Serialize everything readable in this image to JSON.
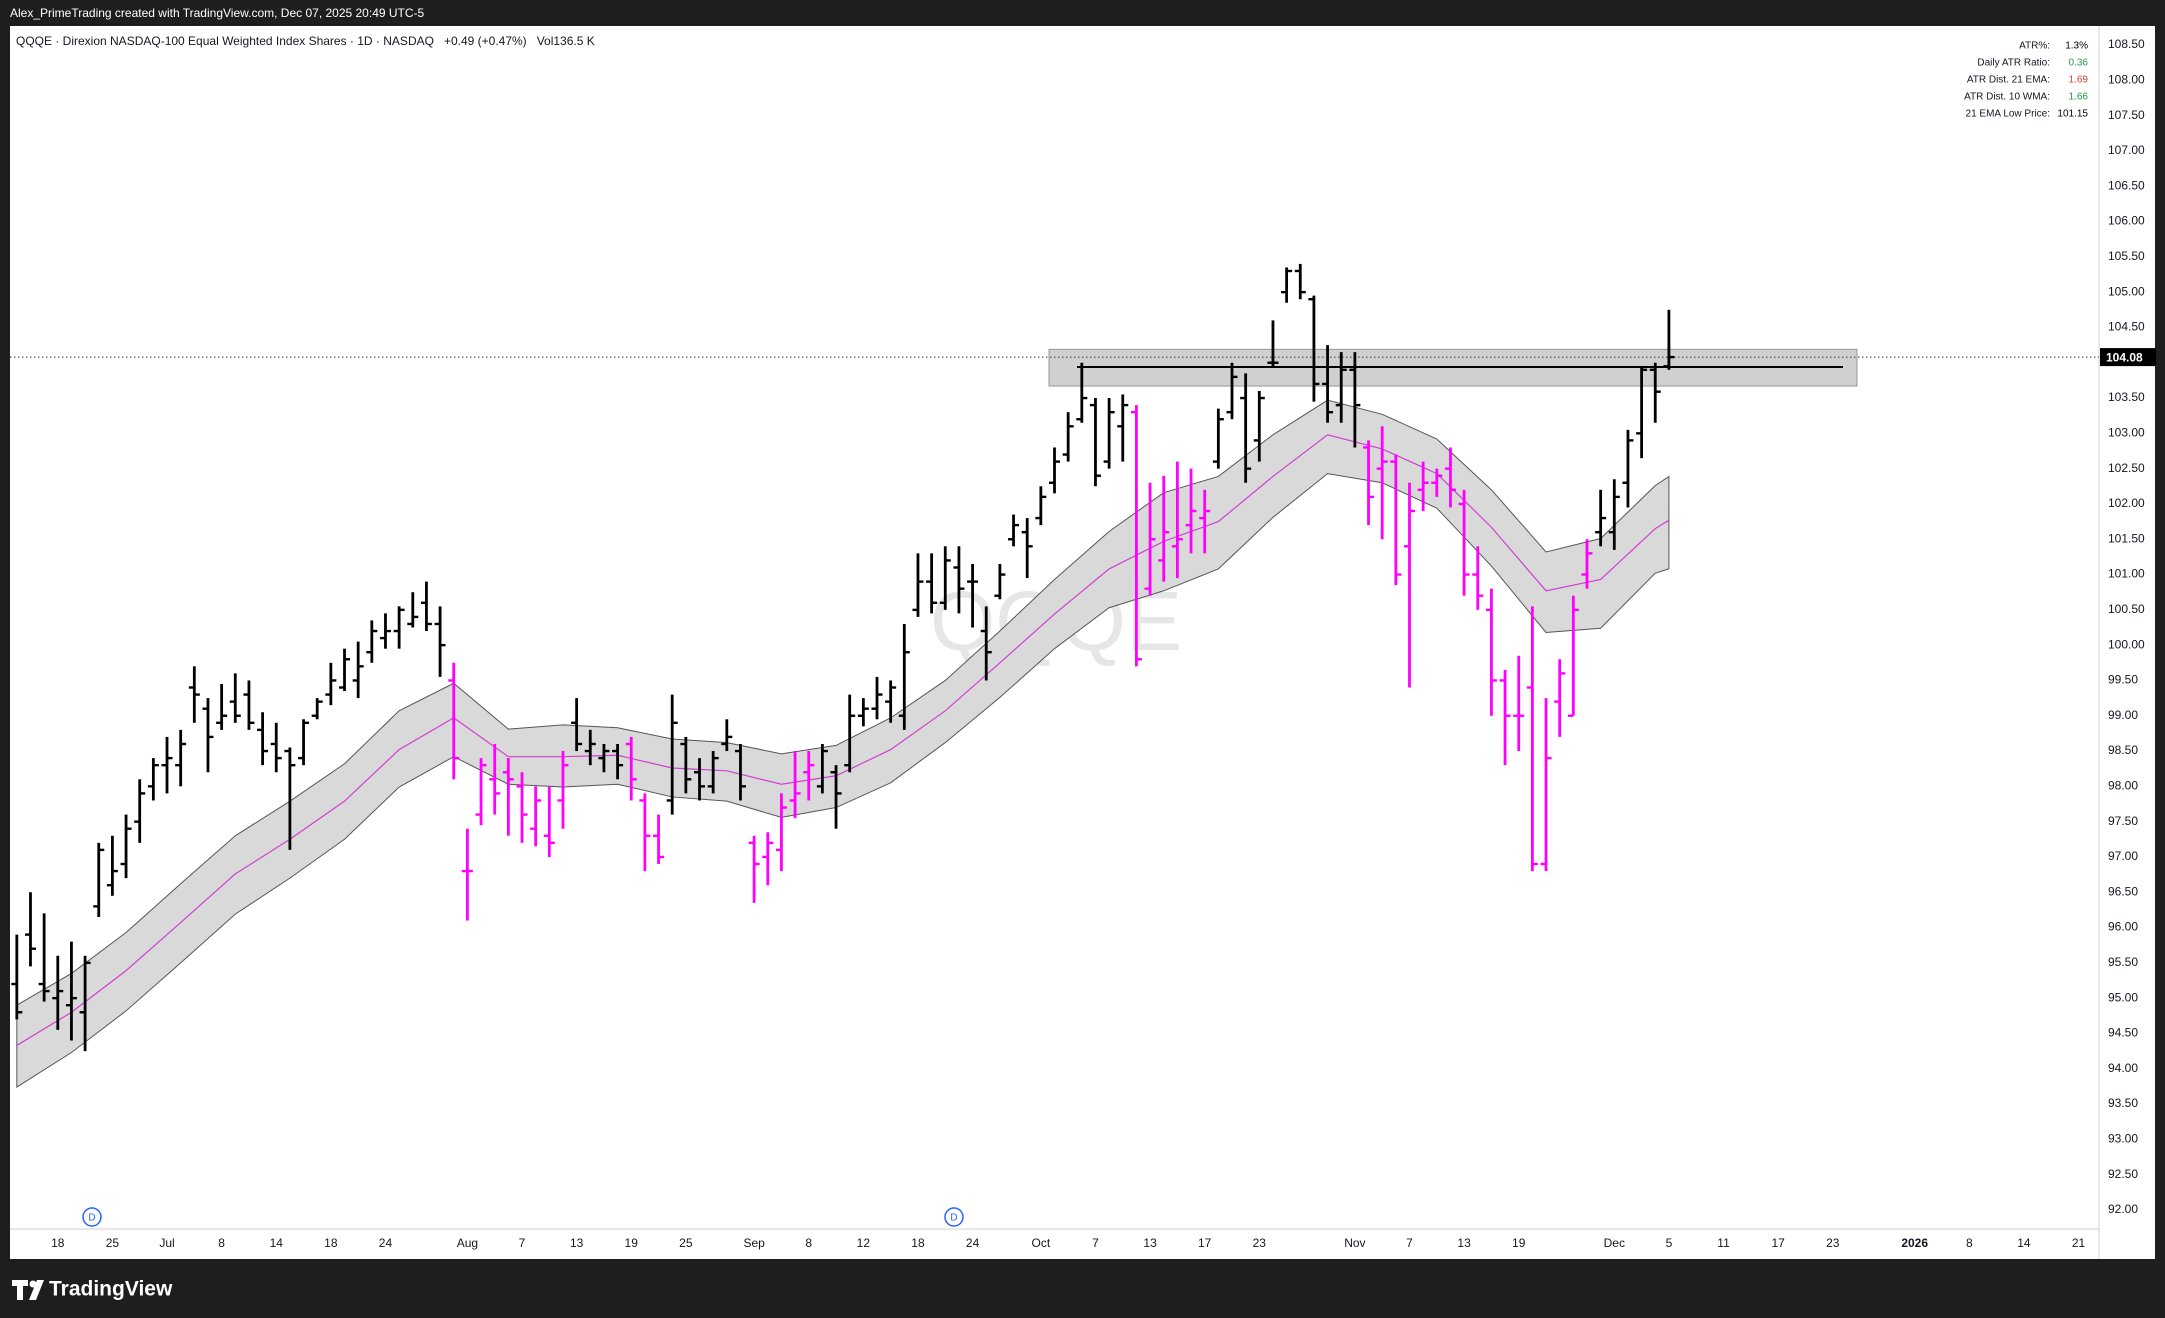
{
  "header": {
    "credit": "Alex_PrimeTrading created with TradingView.com, Dec 07, 2025 20:49 UTC-5"
  },
  "footer": {
    "brand": "TradingView"
  },
  "chart_data": {
    "type": "ohlc",
    "symbol_line": "QQQE · Direxion NASDAQ-100 Equal Weighted Index Shares · 1D · NASDAQ",
    "change": "+0.49 (+0.47%)",
    "volume_label": "Vol",
    "volume": "136.5 K",
    "watermark": "QQQE",
    "categories": [
      null,
      null,
      null,
      "18",
      null,
      null,
      null,
      "25",
      null,
      null,
      null,
      "Jul",
      null,
      null,
      null,
      "8",
      null,
      null,
      null,
      "14",
      null,
      null,
      null,
      "18",
      null,
      null,
      null,
      "24",
      null,
      null,
      null,
      null,
      null,
      "Aug",
      null,
      null,
      null,
      "7",
      null,
      null,
      null,
      "13",
      null,
      null,
      null,
      "19",
      null,
      null,
      null,
      "25",
      null,
      null,
      null,
      null,
      "Sep",
      null,
      null,
      null,
      "8",
      null,
      null,
      null,
      "12",
      null,
      null,
      null,
      "18",
      null,
      null,
      null,
      "24",
      null,
      null,
      null,
      null,
      "Oct",
      null,
      null,
      null,
      "7",
      null,
      null,
      null,
      "13",
      null,
      null,
      null,
      "17",
      null,
      null,
      null,
      "23",
      null,
      null,
      null,
      null,
      null,
      null,
      "Nov",
      null,
      null,
      null,
      "7",
      null,
      null,
      null,
      "13",
      null,
      null,
      null,
      "19",
      null,
      null,
      null,
      null,
      null,
      null,
      "Dec",
      null,
      null,
      null,
      "5",
      null,
      null,
      null,
      "11",
      null,
      null,
      null,
      "17",
      null,
      null,
      null,
      "23",
      null,
      null,
      null,
      null,
      null,
      "2026",
      null,
      null,
      null,
      "8",
      null,
      null,
      null,
      "14",
      null,
      null,
      null,
      "21",
      null
    ],
    "open": [
      95.2,
      95.9,
      95.2,
      95.0,
      94.9,
      94.8,
      96.3,
      96.6,
      96.9,
      97.5,
      98.0,
      98.3,
      98.3,
      99.4,
      99.1,
      98.9,
      99.2,
      99.3,
      98.8,
      98.6,
      98.5,
      98.4,
      99.0,
      99.3,
      99.4,
      99.5,
      99.9,
      100.1,
      100.2,
      100.3,
      100.6,
      100.3,
      99.5,
      96.8,
      97.6,
      98.1,
      98.2,
      98.0,
      97.4,
      97.3,
      97.8,
      98.9,
      98.5,
      98.4,
      98.5,
      98.6,
      97.8,
      97.3,
      97.8,
      98.6,
      98.2,
      98.0,
      98.6,
      98.5,
      97.2,
      97.0,
      97.1,
      97.8,
      98.2,
      98.0,
      98.2,
      98.3,
      99.0,
      99.1,
      99.2,
      99.0,
      100.5,
      100.9,
      100.6,
      101.1,
      100.9,
      100.2,
      100.7,
      101.5,
      101.6,
      101.8,
      102.3,
      102.7,
      103.2,
      103.4,
      102.6,
      103.1,
      103.3,
      100.8,
      101.2,
      101.4,
      101.7,
      101.8,
      102.6,
      103.3,
      103.5,
      102.9,
      104.0,
      105.0,
      105.3,
      104.9,
      103.7,
      103.4,
      103.9,
      102.8,
      102.5,
      102.6,
      101.4,
      102.2,
      102.3,
      102.5,
      102.0,
      101.0,
      100.5,
      99.5,
      99.0,
      99.4,
      96.9,
      99.2,
      99.0,
      101.0,
      101.6,
      101.6,
      102.3,
      103.0,
      103.9,
      103.95,
      null,
      null,
      null,
      null,
      null,
      null,
      null,
      null,
      null,
      null,
      null,
      null,
      null,
      null,
      null,
      null,
      null,
      null,
      null,
      null,
      null,
      null,
      null,
      null,
      null,
      null,
      null,
      null,
      null,
      null,
      null
    ],
    "high": [
      95.9,
      96.5,
      96.2,
      95.6,
      95.8,
      95.6,
      97.2,
      97.3,
      97.6,
      98.1,
      98.4,
      98.7,
      98.8,
      99.7,
      99.25,
      99.45,
      99.6,
      99.5,
      99.05,
      98.9,
      98.55,
      98.95,
      99.25,
      99.75,
      99.95,
      100.05,
      100.35,
      100.45,
      100.55,
      100.75,
      100.9,
      100.55,
      99.75,
      97.4,
      98.4,
      98.6,
      98.4,
      98.2,
      98.0,
      98.0,
      98.5,
      99.25,
      98.8,
      98.6,
      98.6,
      98.7,
      97.9,
      97.6,
      99.3,
      98.7,
      98.4,
      98.5,
      98.95,
      98.6,
      97.3,
      97.35,
      97.9,
      98.5,
      98.5,
      98.6,
      98.3,
      99.3,
      99.25,
      99.55,
      99.5,
      100.3,
      101.3,
      101.3,
      101.4,
      101.4,
      101.15,
      100.55,
      101.15,
      101.85,
      101.8,
      102.25,
      102.8,
      103.3,
      104.0,
      103.5,
      103.5,
      103.55,
      103.4,
      102.3,
      102.4,
      102.6,
      102.5,
      102.2,
      103.35,
      104.0,
      103.85,
      103.6,
      104.6,
      105.35,
      105.4,
      104.95,
      104.25,
      104.15,
      104.15,
      102.9,
      103.1,
      102.7,
      102.3,
      102.6,
      102.5,
      102.8,
      102.2,
      101.4,
      100.8,
      99.65,
      99.85,
      100.55,
      99.25,
      99.8,
      100.7,
      101.5,
      102.2,
      102.35,
      103.05,
      103.95,
      104.0,
      104.75,
      null,
      null,
      null,
      null,
      null,
      null,
      null,
      null,
      null,
      null,
      null,
      null,
      null,
      null,
      null,
      null,
      null,
      null,
      null,
      null,
      null,
      null,
      null,
      null,
      null,
      null,
      null,
      null,
      null,
      null,
      null
    ],
    "low": [
      94.7,
      95.45,
      94.95,
      94.55,
      94.4,
      94.25,
      96.15,
      96.45,
      96.7,
      97.2,
      97.8,
      97.9,
      98.0,
      98.9,
      98.2,
      98.8,
      98.9,
      98.8,
      98.3,
      98.2,
      97.1,
      98.3,
      98.95,
      99.15,
      99.35,
      99.25,
      99.75,
      99.95,
      99.95,
      100.25,
      100.2,
      99.55,
      98.1,
      96.1,
      97.45,
      97.6,
      97.3,
      97.2,
      97.15,
      97.0,
      97.4,
      98.5,
      98.3,
      98.2,
      98.1,
      97.8,
      96.8,
      96.9,
      97.6,
      97.9,
      97.8,
      97.9,
      98.5,
      97.8,
      96.35,
      96.6,
      96.8,
      97.55,
      97.8,
      97.9,
      97.4,
      98.2,
      98.85,
      98.95,
      98.9,
      98.8,
      100.4,
      100.45,
      100.5,
      100.45,
      100.25,
      99.5,
      100.65,
      101.4,
      100.95,
      101.7,
      102.15,
      102.6,
      103.15,
      102.25,
      102.5,
      102.6,
      99.7,
      100.7,
      100.9,
      100.95,
      101.3,
      101.3,
      102.5,
      103.2,
      102.3,
      102.6,
      103.95,
      104.85,
      104.9,
      103.45,
      103.15,
      103.15,
      102.8,
      101.7,
      101.5,
      100.85,
      99.4,
      101.9,
      102.1,
      101.95,
      100.7,
      100.5,
      99.0,
      98.3,
      98.5,
      96.8,
      96.8,
      98.7,
      99.0,
      100.8,
      101.4,
      101.35,
      101.95,
      102.65,
      103.15,
      103.9,
      null,
      null,
      null,
      null,
      null,
      null,
      null,
      null,
      null,
      null,
      null,
      null,
      null,
      null,
      null,
      null,
      null,
      null,
      null,
      null,
      null,
      null,
      null,
      null,
      null,
      null,
      null,
      null,
      null,
      null,
      null
    ],
    "close": [
      94.8,
      95.7,
      95.1,
      95.1,
      95.0,
      95.5,
      97.1,
      96.8,
      97.4,
      97.9,
      98.3,
      98.4,
      98.6,
      99.3,
      98.7,
      99.0,
      99.0,
      98.9,
      98.5,
      98.4,
      98.3,
      98.9,
      99.2,
      99.5,
      99.8,
      99.7,
      100.2,
      100.2,
      100.5,
      100.4,
      100.3,
      100.0,
      98.4,
      96.8,
      98.3,
      97.9,
      98.1,
      97.6,
      97.8,
      97.2,
      98.3,
      98.6,
      98.6,
      98.5,
      98.3,
      98.1,
      97.3,
      97.0,
      98.9,
      98.1,
      98.0,
      98.4,
      98.7,
      98.0,
      96.9,
      97.2,
      97.7,
      97.9,
      98.3,
      98.5,
      97.9,
      99.0,
      99.1,
      99.3,
      99.4,
      99.9,
      100.9,
      100.6,
      101.2,
      100.8,
      100.9,
      99.9,
      101.0,
      101.7,
      101.4,
      102.1,
      102.6,
      103.1,
      103.5,
      102.4,
      103.3,
      103.4,
      99.8,
      101.5,
      101.6,
      101.5,
      101.9,
      101.9,
      103.2,
      103.8,
      102.5,
      103.5,
      104.0,
      105.3,
      105.0,
      103.7,
      103.3,
      103.9,
      103.4,
      102.1,
      102.6,
      101.0,
      101.9,
      102.3,
      102.4,
      102.2,
      101.0,
      100.7,
      99.5,
      99.0,
      99.0,
      96.9,
      98.4,
      99.6,
      100.5,
      101.3,
      101.8,
      102.1,
      102.9,
      103.9,
      103.59,
      104.08,
      null,
      null,
      null,
      null,
      null,
      null,
      null,
      null,
      null,
      null,
      null,
      null,
      null,
      null,
      null,
      null,
      null,
      null,
      null,
      null,
      null,
      null,
      null,
      null,
      null,
      null,
      null,
      null,
      null,
      null,
      null
    ],
    "colors": [
      "#000",
      "#000",
      "#000",
      "#000",
      "#000",
      "#000",
      "#000",
      "#000",
      "#000",
      "#000",
      "#000",
      "#000",
      "#000",
      "#000",
      "#000",
      "#000",
      "#000",
      "#000",
      "#000",
      "#000",
      "#000",
      "#000",
      "#000",
      "#000",
      "#000",
      "#000",
      "#000",
      "#000",
      "#000",
      "#000",
      "#000",
      "#000",
      "#f0f",
      "#f0f",
      "#f0f",
      "#f0f",
      "#f0f",
      "#f0f",
      "#f0f",
      "#f0f",
      "#f0f",
      "#000",
      "#000",
      "#000",
      "#000",
      "#f0f",
      "#f0f",
      "#f0f",
      "#000",
      "#000",
      "#000",
      "#000",
      "#000",
      "#000",
      "#f0f",
      "#f0f",
      "#f0f",
      "#f0f",
      "#f0f",
      "#000",
      "#000",
      "#000",
      "#000",
      "#000",
      "#000",
      "#000",
      "#000",
      "#000",
      "#000",
      "#000",
      "#000",
      "#000",
      "#000",
      "#000",
      "#000",
      "#000",
      "#000",
      "#000",
      "#000",
      "#000",
      "#000",
      "#000",
      "#f0f",
      "#f0f",
      "#f0f",
      "#f0f",
      "#f0f",
      "#f0f",
      "#000",
      "#000",
      "#000",
      "#000",
      "#000",
      "#000",
      "#000",
      "#000",
      "#000",
      "#000",
      "#000",
      "#f0f",
      "#f0f",
      "#f0f",
      "#f0f",
      "#f0f",
      "#f0f",
      "#f0f",
      "#f0f",
      "#f0f",
      "#f0f",
      "#f0f",
      "#f0f",
      "#f0f",
      "#f0f",
      "#f0f",
      "#f0f",
      "#f0f",
      "#000",
      "#000",
      "#000",
      "#000",
      "#000",
      "#000"
    ],
    "band": {
      "x": [
        0,
        4,
        8,
        12,
        16,
        20,
        24,
        28,
        32,
        36,
        40,
        44,
        48,
        52,
        56,
        60,
        64,
        68,
        72,
        76,
        80,
        84,
        88,
        92,
        96,
        100,
        104,
        108,
        112,
        116,
        120,
        121
      ],
      "upper": [
        94.9,
        95.35,
        95.93,
        96.62,
        97.3,
        97.79,
        98.32,
        99.07,
        99.46,
        98.81,
        98.87,
        98.83,
        98.67,
        98.62,
        98.46,
        98.58,
        98.97,
        99.5,
        100.2,
        100.93,
        101.61,
        102.16,
        102.39,
        102.98,
        103.47,
        103.27,
        102.92,
        102.2,
        101.32,
        101.51,
        102.26,
        102.39
      ],
      "middle": [
        94.33,
        94.8,
        95.39,
        96.07,
        96.76,
        97.25,
        97.79,
        98.52,
        98.97,
        98.42,
        98.42,
        98.44,
        98.26,
        98.22,
        98.03,
        98.15,
        98.52,
        99.07,
        99.75,
        100.44,
        101.08,
        101.47,
        101.75,
        102.39,
        102.98,
        102.78,
        102.43,
        101.67,
        100.77,
        100.93,
        101.65,
        101.77
      ],
      "lower": [
        93.74,
        94.23,
        94.82,
        95.5,
        96.19,
        96.7,
        97.25,
        97.99,
        98.42,
        98.03,
        97.99,
        98.03,
        97.85,
        97.79,
        97.56,
        97.7,
        98.05,
        98.62,
        99.26,
        99.95,
        100.53,
        100.77,
        101.08,
        101.81,
        102.43,
        102.3,
        101.94,
        101.12,
        100.18,
        100.24,
        101.02,
        101.08
      ],
      "fill": "#d9d9d9",
      "line_color": "#555555",
      "middle_color": "#d040d0"
    },
    "zone": {
      "top": 104.19,
      "bottom": 103.67,
      "level": 103.94,
      "fill": "#c8c8c8"
    },
    "last_price": 104.08,
    "dividend_markers": [
      "D",
      "D"
    ],
    "info_rows": [
      [
        "ATR%:",
        "1.3%"
      ],
      [
        "Daily ATR Ratio:",
        "0.36"
      ],
      [
        "ATR Dist. 21 EMA:",
        "1.69"
      ],
      [
        "ATR Dist. 10 WMA:",
        "1.66"
      ],
      [
        "21 EMA Low Price:",
        "101.15"
      ]
    ],
    "info_colors": [
      "#000000",
      "#22a046",
      "#e53935",
      "#22a046",
      "#000000"
    ],
    "ylim": [
      91.73,
      108.77
    ],
    "yticks": [
      {
        "value": 92,
        "label": "92.00"
      },
      {
        "value": 92.5,
        "label": "92.50"
      },
      {
        "value": 93,
        "label": "93.00"
      },
      {
        "value": 93.5,
        "label": "93.50"
      },
      {
        "value": 94,
        "label": "94.00"
      },
      {
        "value": 94.5,
        "label": "94.50"
      },
      {
        "value": 95,
        "label": "95.00"
      },
      {
        "value": 95.5,
        "label": "95.50"
      },
      {
        "value": 96,
        "label": "96.00"
      },
      {
        "value": 96.5,
        "label": "96.50"
      },
      {
        "value": 97,
        "label": "97.00"
      },
      {
        "value": 97.5,
        "label": "97.50"
      },
      {
        "value": 98,
        "label": "98.00"
      },
      {
        "value": 98.5,
        "label": "98.50"
      },
      {
        "value": 99,
        "label": "99.00"
      },
      {
        "value": 99.5,
        "label": "99.50"
      },
      {
        "value": 100,
        "label": "100.00"
      },
      {
        "value": 100.5,
        "label": "100.50"
      },
      {
        "value": 101,
        "label": "101.00"
      },
      {
        "value": 101.5,
        "label": "101.50"
      },
      {
        "value": 102,
        "label": "102.00"
      },
      {
        "value": 102.5,
        "label": "102.50"
      },
      {
        "value": 103,
        "label": "103.00"
      },
      {
        "value": 103.5,
        "label": "103.50"
      },
      {
        "value": 104,
        "label": "104.00"
      },
      {
        "value": 104.5,
        "label": "104.50"
      },
      {
        "value": 105,
        "label": "105.00"
      },
      {
        "value": 105.5,
        "label": "105.50"
      },
      {
        "value": 106,
        "label": "106.00"
      },
      {
        "value": 106.5,
        "label": "106.50"
      },
      {
        "value": 107,
        "label": "107.00"
      },
      {
        "value": 107.5,
        "label": "107.50"
      },
      {
        "value": 108,
        "label": "108.00"
      },
      {
        "value": 108.5,
        "label": "108.50"
      }
    ],
    "grid": false
  }
}
